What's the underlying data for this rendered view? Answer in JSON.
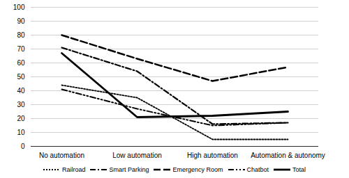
{
  "chart_data": {
    "type": "line",
    "categories": [
      "No automation",
      "Low automation",
      "High automation",
      "Automation & autonomy"
    ],
    "series": [
      {
        "name": "Railroad",
        "color": "#000000",
        "line_style": "dotted",
        "values": [
          44,
          35,
          5,
          5
        ]
      },
      {
        "name": "Smart Parking",
        "color": "#000000",
        "line_style": "dashdot",
        "values": [
          71,
          54,
          16,
          17
        ]
      },
      {
        "name": "Emergency Room",
        "color": "#000000",
        "line_style": "dashed_long",
        "values": [
          80,
          63,
          47,
          57
        ]
      },
      {
        "name": "Chatbot",
        "color": "#000000",
        "line_style": "dash_dot_dot",
        "values": [
          41,
          27,
          15,
          17
        ]
      },
      {
        "name": "Total",
        "color": "#000000",
        "line_style": "solid",
        "values": [
          67,
          21,
          22,
          25
        ]
      }
    ],
    "ylim": [
      0,
      100
    ],
    "yticks": [
      0,
      10,
      20,
      30,
      40,
      50,
      60,
      70,
      80,
      90,
      100
    ],
    "grid": true,
    "legend": "bottom"
  }
}
